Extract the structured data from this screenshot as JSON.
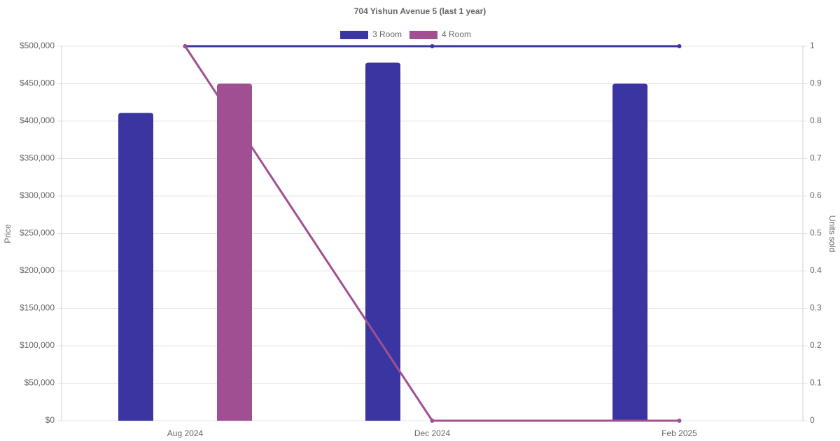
{
  "chart_data": {
    "type": "bar-line",
    "title": "704 Yishun Avenue 5 (last 1 year)",
    "y_label": "Price",
    "y2_label": "Units sold",
    "categories": [
      "Aug 2024",
      "Dec 2024",
      "Feb 2025"
    ],
    "series": [
      {
        "name": "3 Room",
        "color": "#3a35a0",
        "values": [
          411000,
          478000,
          450000
        ],
        "units_sold": [
          1,
          1,
          1
        ]
      },
      {
        "name": "4 Room",
        "color": "#a04f93",
        "values": [
          450000,
          null,
          null
        ],
        "units_sold": [
          1,
          0,
          0
        ]
      }
    ],
    "ylim": [
      0,
      500000
    ],
    "yticks": [
      {
        "value": 0,
        "label": "$0"
      },
      {
        "value": 50000,
        "label": "$50,000"
      },
      {
        "value": 100000,
        "label": "$100,000"
      },
      {
        "value": 150000,
        "label": "$150,000"
      },
      {
        "value": 200000,
        "label": "$200,000"
      },
      {
        "value": 250000,
        "label": "$250,000"
      },
      {
        "value": 300000,
        "label": "$300,000"
      },
      {
        "value": 350000,
        "label": "$350,000"
      },
      {
        "value": 400000,
        "label": "$400,000"
      },
      {
        "value": 450000,
        "label": "$450,000"
      },
      {
        "value": 500000,
        "label": "$500,000"
      }
    ],
    "y2lim": [
      0,
      1
    ],
    "y2ticks": [
      0,
      0.1,
      0.2,
      0.3,
      0.4,
      0.5,
      0.6,
      0.7,
      0.8,
      0.9,
      1
    ],
    "grid": true,
    "legend": "top"
  }
}
